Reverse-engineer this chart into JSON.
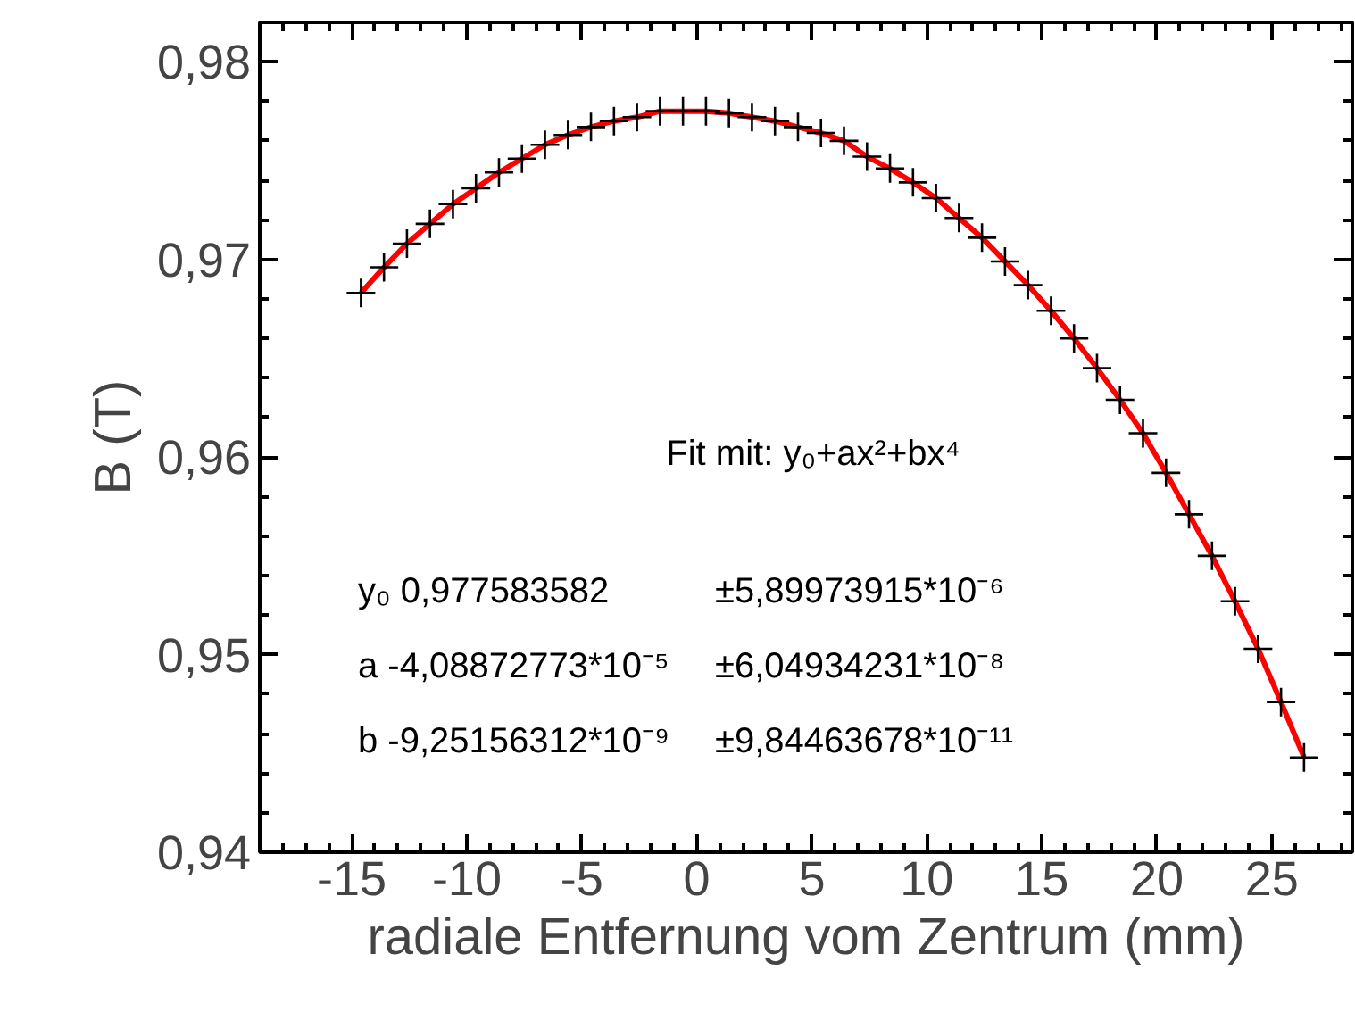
{
  "chart_data": {
    "type": "scatter",
    "xlabel": "radiale Entfernung vom Zentrum (mm)",
    "ylabel": "B (T)",
    "xlim": [
      -19,
      28.5
    ],
    "ylim": [
      0.94,
      0.982
    ],
    "xticks": [
      -15,
      -10,
      -5,
      0,
      5,
      10,
      15,
      20,
      25
    ],
    "yticks": [
      {
        "value": 0.94,
        "label": "0,94"
      },
      {
        "value": 0.95,
        "label": "0,95"
      },
      {
        "value": 0.96,
        "label": "0,96"
      },
      {
        "value": 0.97,
        "label": "0,97"
      },
      {
        "value": 0.98,
        "label": "0,98"
      }
    ],
    "x": [
      -14.6,
      -13.6,
      -12.6,
      -11.6,
      -10.6,
      -9.6,
      -8.6,
      -7.6,
      -6.6,
      -5.6,
      -4.6,
      -3.6,
      -2.6,
      -1.6,
      -0.6,
      0.4,
      1.4,
      2.4,
      3.4,
      4.4,
      5.4,
      6.4,
      7.4,
      8.4,
      9.4,
      10.4,
      11.4,
      12.4,
      13.4,
      14.4,
      15.4,
      16.4,
      17.4,
      18.4,
      19.4,
      20.4,
      21.4,
      22.4,
      23.4,
      24.4,
      25.4,
      26.4
    ],
    "series": [
      {
        "color": "#000000",
        "marker": "cross",
        "values": [
          0.9683,
          0.9696,
          0.9708,
          0.9718,
          0.9728,
          0.9736,
          0.9744,
          0.9751,
          0.9758,
          0.9763,
          0.9767,
          0.977,
          0.9772,
          0.9775,
          0.9775,
          0.9775,
          0.9774,
          0.9772,
          0.977,
          0.9767,
          0.9764,
          0.976,
          0.9752,
          0.9746,
          0.9739,
          0.9731,
          0.9721,
          0.9711,
          0.9699,
          0.9687,
          0.9674,
          0.966,
          0.9645,
          0.9629,
          0.9612,
          0.9592,
          0.9571,
          0.955,
          0.9527,
          0.9503,
          0.9476,
          0.9448
        ]
      },
      {
        "type": "line",
        "color": "#ff0000",
        "line_style": "solid",
        "marker": "none",
        "values": [
          0.9683,
          0.9696,
          0.9708,
          0.9718,
          0.9728,
          0.9736,
          0.9744,
          0.9751,
          0.9758,
          0.9763,
          0.9767,
          0.977,
          0.9772,
          0.9775,
          0.9775,
          0.9775,
          0.9774,
          0.9772,
          0.977,
          0.9767,
          0.9764,
          0.976,
          0.9752,
          0.9746,
          0.9739,
          0.9731,
          0.9721,
          0.9711,
          0.9699,
          0.9687,
          0.9674,
          0.966,
          0.9645,
          0.9629,
          0.9612,
          0.9592,
          0.9571,
          0.955,
          0.9527,
          0.9503,
          0.9476,
          0.9448
        ]
      }
    ],
    "annotations": [
      "Fit mit: y₀+ax²+bx⁴",
      "y₀  0,977583582",
      "±5,89973915*10⁻⁶",
      "a  -4,08872773*10⁻⁵",
      "±6,04934231*10⁻⁸",
      "b  -9,25156312*10⁻⁹",
      "±9,84463678*10⁻¹¹"
    ],
    "grid": false
  }
}
